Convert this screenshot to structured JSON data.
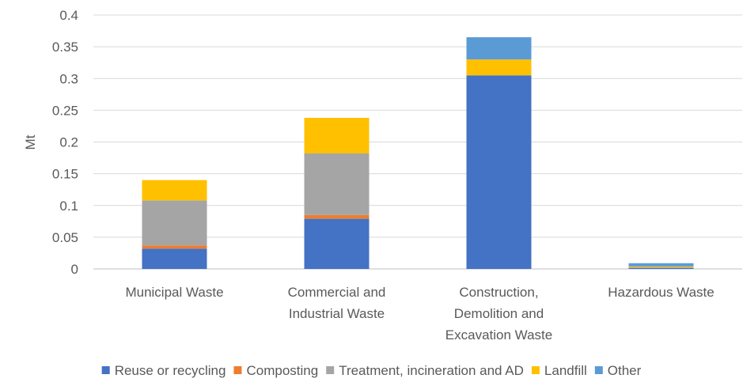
{
  "chart_data": {
    "type": "bar",
    "stacked": true,
    "categories": [
      [
        "Municipal Waste"
      ],
      [
        "Commercial and",
        "Industrial Waste"
      ],
      [
        "Construction,",
        "Demolition and",
        "Excavation Waste"
      ],
      [
        "Hazardous Waste"
      ]
    ],
    "series": [
      {
        "name": "Reuse or recycling",
        "color": "#4472C4",
        "values": [
          0.032,
          0.079,
          0.305,
          0.0015
        ]
      },
      {
        "name": "Composting",
        "color": "#ED7D31",
        "values": [
          0.005,
          0.006,
          0.0,
          0.0
        ]
      },
      {
        "name": "Treatment, incineration and AD",
        "color": "#A5A5A5",
        "values": [
          0.071,
          0.097,
          0.0,
          0.001
        ]
      },
      {
        "name": "Landfill",
        "color": "#FFC000",
        "values": [
          0.032,
          0.056,
          0.025,
          0.0015
        ]
      },
      {
        "name": "Other",
        "color": "#5B9BD5",
        "values": [
          0.0,
          0.0,
          0.035,
          0.005
        ]
      }
    ],
    "ylabel": "Mt",
    "ylim": [
      0,
      0.4
    ],
    "yticks": [
      "0",
      "0.05",
      "0.1",
      "0.15",
      "0.2",
      "0.25",
      "0.3",
      "0.35",
      "0.4"
    ],
    "grid": true,
    "legend_position": "bottom"
  }
}
